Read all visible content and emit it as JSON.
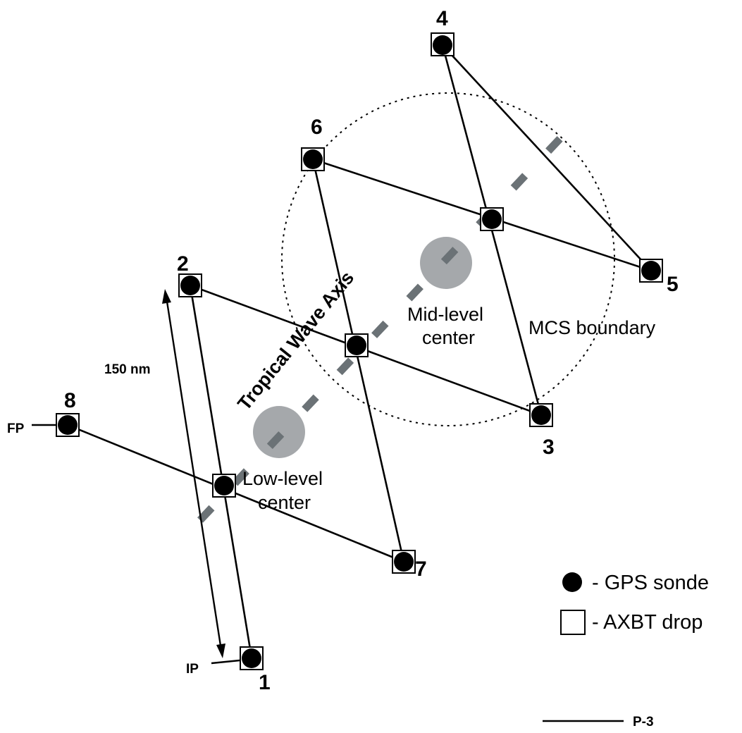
{
  "drop_points": [
    {
      "id": "1",
      "label": "1"
    },
    {
      "id": "2",
      "label": "2"
    },
    {
      "id": "3",
      "label": "3"
    },
    {
      "id": "4",
      "label": "4"
    },
    {
      "id": "5",
      "label": "5"
    },
    {
      "id": "6",
      "label": "6"
    },
    {
      "id": "7",
      "label": "7"
    },
    {
      "id": "8",
      "label": "8"
    }
  ],
  "markers": {
    "initial_point": "IP",
    "final_point": "FP"
  },
  "distance_label": "150 nm",
  "axis_label": "Tropical Wave Axis",
  "centers": {
    "mid_level": {
      "line1": "Mid-level",
      "line2": "center"
    },
    "low_level": {
      "line1": "Low-level",
      "line2": "center"
    }
  },
  "boundary_label": "MCS boundary",
  "legend": {
    "gps_sonde": "- GPS sonde",
    "axbt_drop": "- AXBT drop",
    "aircraft": "P-3"
  },
  "colors": {
    "track": "#000000",
    "wave_axis": "#6b7276",
    "center_disk": "#a5a8ab",
    "background": "#ffffff"
  }
}
